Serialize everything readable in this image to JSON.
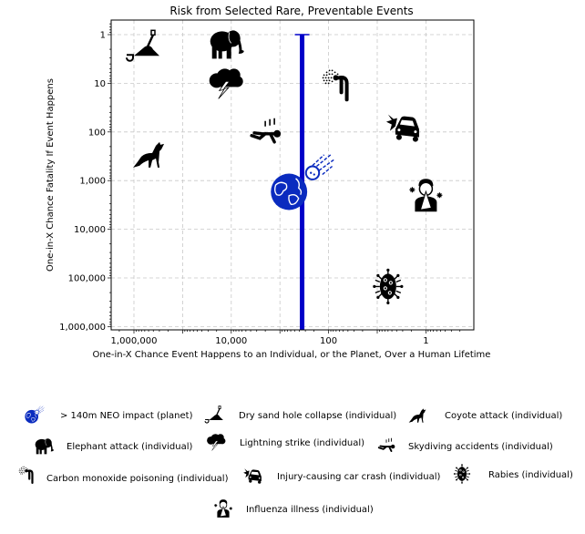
{
  "chart_data": {
    "type": "scatter",
    "title": "Risk from Selected Rare, Preventable Events",
    "xlabel": "One-in-X Chance Event Happens to an Individual, or the Planet, Over a Human Lifetime",
    "ylabel": "One-in-X Chance Fatality If Event Happens",
    "x_scale": "log",
    "y_scale": "log",
    "x_reversed": true,
    "y_reversed": true,
    "xlim": [
      3300000,
      0.13
    ],
    "ylim": [
      0.5,
      1200000
    ],
    "grid": true,
    "x_ticks": [
      {
        "value": 1000000,
        "label": "1,000,000"
      },
      {
        "value": 10000,
        "label": "10,000"
      },
      {
        "value": 100,
        "label": "100"
      },
      {
        "value": 1,
        "label": "1"
      }
    ],
    "y_ticks": [
      {
        "value": 1,
        "label": "1"
      },
      {
        "value": 10,
        "label": "10"
      },
      {
        "value": 100,
        "label": "100"
      },
      {
        "value": 1000,
        "label": "1,000"
      },
      {
        "value": 10000,
        "label": "10,000"
      },
      {
        "value": 100000,
        "label": "100,000"
      },
      {
        "value": 1000000,
        "label": "1,000,000"
      }
    ],
    "points": [
      {
        "name": "> 140m NEO impact (planet)",
        "icon": "earth-comet-icon",
        "x": 650,
        "y": 1700
      },
      {
        "name": "Dry sand hole collapse (individual)",
        "icon": "sand-hole-icon",
        "x": 650000,
        "y": 1.7
      },
      {
        "name": "Coyote attack (individual)",
        "icon": "coyote-icon",
        "x": 500000,
        "y": 270
      },
      {
        "name": "Elephant attack (individual)",
        "icon": "elephant-icon",
        "x": 13000,
        "y": 1.5
      },
      {
        "name": "Lightning strike (individual)",
        "icon": "lightning-cloud-icon",
        "x": 13000,
        "y": 10
      },
      {
        "name": "Skydiving accidents (individual)",
        "icon": "skydiver-icon",
        "x": 2000,
        "y": 100
      },
      {
        "name": "Carbon monoxide poisoning (individual)",
        "icon": "carbon-monoxide-icon",
        "x": 65,
        "y": 10
      },
      {
        "name": "Injury-causing car crash (individual)",
        "icon": "car-crash-icon",
        "x": 3,
        "y": 80
      },
      {
        "name": "Rabies (individual)",
        "icon": "virus-icon",
        "x": 6,
        "y": 150000
      },
      {
        "name": "Influenza illness (individual)",
        "icon": "sick-person-icon",
        "x": 1,
        "y": 2000
      }
    ],
    "vertical_line": {
      "x": 350,
      "y_from": 1,
      "color": "#0000c8"
    },
    "legend_placement": "below",
    "colors": {
      "neo": "#0a2bbf",
      "icons": "#000000",
      "line": "#0000c8"
    }
  }
}
